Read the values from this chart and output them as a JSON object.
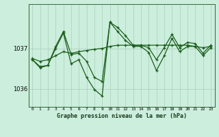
{
  "title": "Graphe pression niveau de la mer (hPa)",
  "bg_color": "#cceedd",
  "grid_color": "#aaccbb",
  "line_color": "#1a5c1a",
  "x_labels": [
    "0",
    "1",
    "2",
    "3",
    "4",
    "5",
    "6",
    "7",
    "8",
    "9",
    "10",
    "11",
    "12",
    "13",
    "14",
    "15",
    "16",
    "17",
    "18",
    "19",
    "20",
    "21",
    "22",
    "23"
  ],
  "y_ticks": [
    1036,
    1037
  ],
  "ylim": [
    1035.55,
    1038.1
  ],
  "series_smooth": [
    1036.75,
    1036.68,
    1036.72,
    1036.82,
    1036.92,
    1036.88,
    1036.92,
    1036.95,
    1036.98,
    1037.0,
    1037.05,
    1037.08,
    1037.08,
    1037.08,
    1037.08,
    1037.08,
    1037.08,
    1037.08,
    1037.08,
    1037.08,
    1037.08,
    1037.05,
    1037.02,
    1037.05
  ],
  "series_jagged1": [
    1036.72,
    1036.55,
    1036.58,
    1037.0,
    1037.38,
    1036.62,
    1036.72,
    1036.28,
    1035.98,
    1035.82,
    1037.65,
    1037.42,
    1037.2,
    1037.05,
    1037.05,
    1036.9,
    1036.45,
    1036.82,
    1037.25,
    1036.92,
    1037.05,
    1037.05,
    1036.82,
    1037.02
  ],
  "series_jagged2": [
    1036.72,
    1036.52,
    1036.58,
    1037.05,
    1037.42,
    1036.85,
    1036.88,
    1036.68,
    1036.28,
    1036.18,
    1037.65,
    1037.52,
    1037.32,
    1037.08,
    1037.08,
    1037.02,
    1036.72,
    1037.02,
    1037.35,
    1037.02,
    1037.15,
    1037.12,
    1036.88,
    1037.08
  ]
}
